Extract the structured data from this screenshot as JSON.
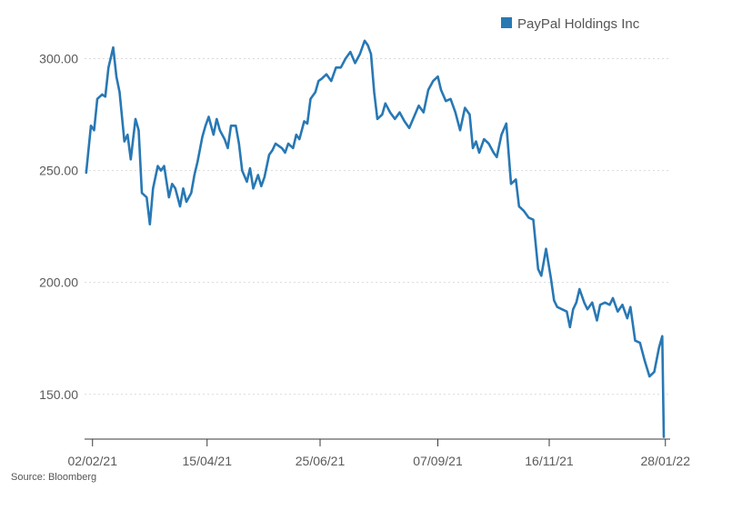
{
  "chart_data": {
    "type": "line",
    "title": "",
    "xlabel": "",
    "ylabel": "",
    "ylim": [
      130,
      314
    ],
    "xlim": [
      "2021-01-28",
      "2022-01-31"
    ],
    "grid": {
      "horizontal": true,
      "vertical": false,
      "style": "dotted"
    },
    "legend": {
      "placement": "top-right"
    },
    "series": [
      {
        "name": "PayPal Holdings Inc",
        "color": "#2878b4",
        "points": [
          [
            "2021-01-29",
            249
          ],
          [
            "2021-02-01",
            270
          ],
          [
            "2021-02-03",
            268
          ],
          [
            "2021-02-05",
            282
          ],
          [
            "2021-02-08",
            284
          ],
          [
            "2021-02-10",
            283
          ],
          [
            "2021-02-12",
            296
          ],
          [
            "2021-02-15",
            305
          ],
          [
            "2021-02-17",
            292
          ],
          [
            "2021-02-19",
            285
          ],
          [
            "2021-02-22",
            263
          ],
          [
            "2021-02-24",
            266
          ],
          [
            "2021-02-26",
            255
          ],
          [
            "2021-03-01",
            273
          ],
          [
            "2021-03-03",
            268
          ],
          [
            "2021-03-05",
            240
          ],
          [
            "2021-03-08",
            238
          ],
          [
            "2021-03-10",
            226
          ],
          [
            "2021-03-12",
            242
          ],
          [
            "2021-03-15",
            252
          ],
          [
            "2021-03-17",
            250
          ],
          [
            "2021-03-19",
            252
          ],
          [
            "2021-03-22",
            238
          ],
          [
            "2021-03-24",
            244
          ],
          [
            "2021-03-26",
            242
          ],
          [
            "2021-03-29",
            234
          ],
          [
            "2021-03-31",
            242
          ],
          [
            "2021-04-02",
            236
          ],
          [
            "2021-04-05",
            240
          ],
          [
            "2021-04-07",
            248
          ],
          [
            "2021-04-09",
            254
          ],
          [
            "2021-04-12",
            265
          ],
          [
            "2021-04-14",
            270
          ],
          [
            "2021-04-16",
            274
          ],
          [
            "2021-04-19",
            266
          ],
          [
            "2021-04-21",
            273
          ],
          [
            "2021-04-23",
            268
          ],
          [
            "2021-04-26",
            264
          ],
          [
            "2021-04-28",
            260
          ],
          [
            "2021-04-30",
            270
          ],
          [
            "2021-05-03",
            270
          ],
          [
            "2021-05-05",
            262
          ],
          [
            "2021-05-07",
            250
          ],
          [
            "2021-05-10",
            245
          ],
          [
            "2021-05-12",
            251
          ],
          [
            "2021-05-14",
            242
          ],
          [
            "2021-05-17",
            248
          ],
          [
            "2021-05-19",
            243
          ],
          [
            "2021-05-21",
            247
          ],
          [
            "2021-05-24",
            257
          ],
          [
            "2021-05-26",
            259
          ],
          [
            "2021-05-28",
            262
          ],
          [
            "2021-06-01",
            260
          ],
          [
            "2021-06-03",
            258
          ],
          [
            "2021-06-05",
            262
          ],
          [
            "2021-06-08",
            260
          ],
          [
            "2021-06-10",
            266
          ],
          [
            "2021-06-12",
            264
          ],
          [
            "2021-06-15",
            272
          ],
          [
            "2021-06-17",
            271
          ],
          [
            "2021-06-19",
            282
          ],
          [
            "2021-06-22",
            285
          ],
          [
            "2021-06-24",
            290
          ],
          [
            "2021-06-26",
            291
          ],
          [
            "2021-06-29",
            293
          ],
          [
            "2021-07-02",
            290
          ],
          [
            "2021-07-05",
            296
          ],
          [
            "2021-07-08",
            296
          ],
          [
            "2021-07-11",
            300
          ],
          [
            "2021-07-14",
            303
          ],
          [
            "2021-07-17",
            298
          ],
          [
            "2021-07-20",
            302
          ],
          [
            "2021-07-23",
            308
          ],
          [
            "2021-07-25",
            306
          ],
          [
            "2021-07-27",
            302
          ],
          [
            "2021-07-29",
            285
          ],
          [
            "2021-07-31",
            273
          ],
          [
            "2021-08-03",
            275
          ],
          [
            "2021-08-05",
            280
          ],
          [
            "2021-08-08",
            276
          ],
          [
            "2021-08-11",
            273
          ],
          [
            "2021-08-14",
            276
          ],
          [
            "2021-08-17",
            272
          ],
          [
            "2021-08-20",
            269
          ],
          [
            "2021-08-23",
            274
          ],
          [
            "2021-08-26",
            279
          ],
          [
            "2021-08-29",
            276
          ],
          [
            "2021-09-01",
            286
          ],
          [
            "2021-09-04",
            290
          ],
          [
            "2021-09-07",
            292
          ],
          [
            "2021-09-09",
            286
          ],
          [
            "2021-09-12",
            281
          ],
          [
            "2021-09-15",
            282
          ],
          [
            "2021-09-18",
            276
          ],
          [
            "2021-09-21",
            268
          ],
          [
            "2021-09-24",
            278
          ],
          [
            "2021-09-27",
            275
          ],
          [
            "2021-09-29",
            260
          ],
          [
            "2021-10-01",
            263
          ],
          [
            "2021-10-03",
            258
          ],
          [
            "2021-10-06",
            264
          ],
          [
            "2021-10-09",
            262
          ],
          [
            "2021-10-12",
            258
          ],
          [
            "2021-10-14",
            256
          ],
          [
            "2021-10-17",
            266
          ],
          [
            "2021-10-20",
            271
          ],
          [
            "2021-10-23",
            244
          ],
          [
            "2021-10-26",
            246
          ],
          [
            "2021-10-28",
            234
          ],
          [
            "2021-10-31",
            232
          ],
          [
            "2021-11-03",
            229
          ],
          [
            "2021-11-06",
            228
          ],
          [
            "2021-11-09",
            206
          ],
          [
            "2021-11-11",
            203
          ],
          [
            "2021-11-14",
            215
          ],
          [
            "2021-11-17",
            202
          ],
          [
            "2021-11-19",
            192
          ],
          [
            "2021-11-21",
            189
          ],
          [
            "2021-11-24",
            188
          ],
          [
            "2021-11-27",
            187
          ],
          [
            "2021-11-29",
            180
          ],
          [
            "2021-12-01",
            188
          ],
          [
            "2021-12-03",
            191
          ],
          [
            "2021-12-05",
            197
          ],
          [
            "2021-12-08",
            191
          ],
          [
            "2021-12-10",
            188
          ],
          [
            "2021-12-13",
            191
          ],
          [
            "2021-12-16",
            183
          ],
          [
            "2021-12-18",
            190
          ],
          [
            "2021-12-21",
            191
          ],
          [
            "2021-12-24",
            190
          ],
          [
            "2021-12-26",
            193
          ],
          [
            "2021-12-29",
            187
          ],
          [
            "2022-01-01",
            190
          ],
          [
            "2022-01-04",
            184
          ],
          [
            "2022-01-06",
            189
          ],
          [
            "2022-01-09",
            174
          ],
          [
            "2022-01-12",
            173
          ],
          [
            "2022-01-15",
            165
          ],
          [
            "2022-01-18",
            158
          ],
          [
            "2022-01-21",
            160
          ],
          [
            "2022-01-24",
            171
          ],
          [
            "2022-01-26",
            176
          ],
          [
            "2022-01-27",
            131
          ]
        ]
      }
    ],
    "y_ticks": [
      {
        "value": 150,
        "label": "150.00"
      },
      {
        "value": 200,
        "label": "200.00"
      },
      {
        "value": 250,
        "label": "250.00"
      },
      {
        "value": 300,
        "label": "300.00"
      }
    ],
    "x_ticks": [
      {
        "date": "2021-02-02",
        "label": "02/02/21"
      },
      {
        "date": "2021-04-15",
        "label": "15/04/21"
      },
      {
        "date": "2021-06-25",
        "label": "25/06/21"
      },
      {
        "date": "2021-09-07",
        "label": "07/09/21"
      },
      {
        "date": "2021-11-16",
        "label": "16/11/21"
      },
      {
        "date": "2022-01-28",
        "label": "28/01/22"
      }
    ]
  },
  "footer": {
    "source": "Source: Bloomberg"
  }
}
